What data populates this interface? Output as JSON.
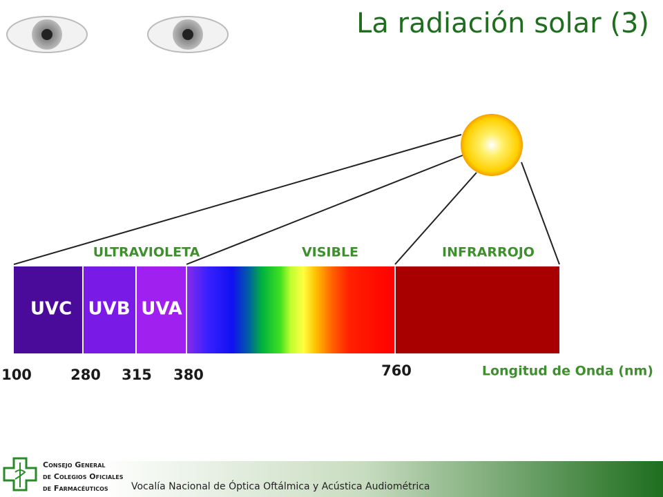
{
  "header": {
    "title": "La radiación solar (3)"
  },
  "spectrum": {
    "bands": [
      "ULTRAVIOLETA",
      "VISIBLE",
      "INFRARROJO"
    ],
    "segments": [
      "UVC",
      "UVB",
      "UVA"
    ],
    "wavelengths": [
      100,
      280,
      315,
      380,
      760
    ],
    "axis_label": "Longitud de Onda (nm)"
  },
  "footer": {
    "organization": [
      "Consejo General",
      "de Colegios Oficiales",
      "de Farmacéuticos"
    ],
    "text": "Vocalía Nacional de Óptica Oftálmica y Acústica Audiométrica"
  }
}
